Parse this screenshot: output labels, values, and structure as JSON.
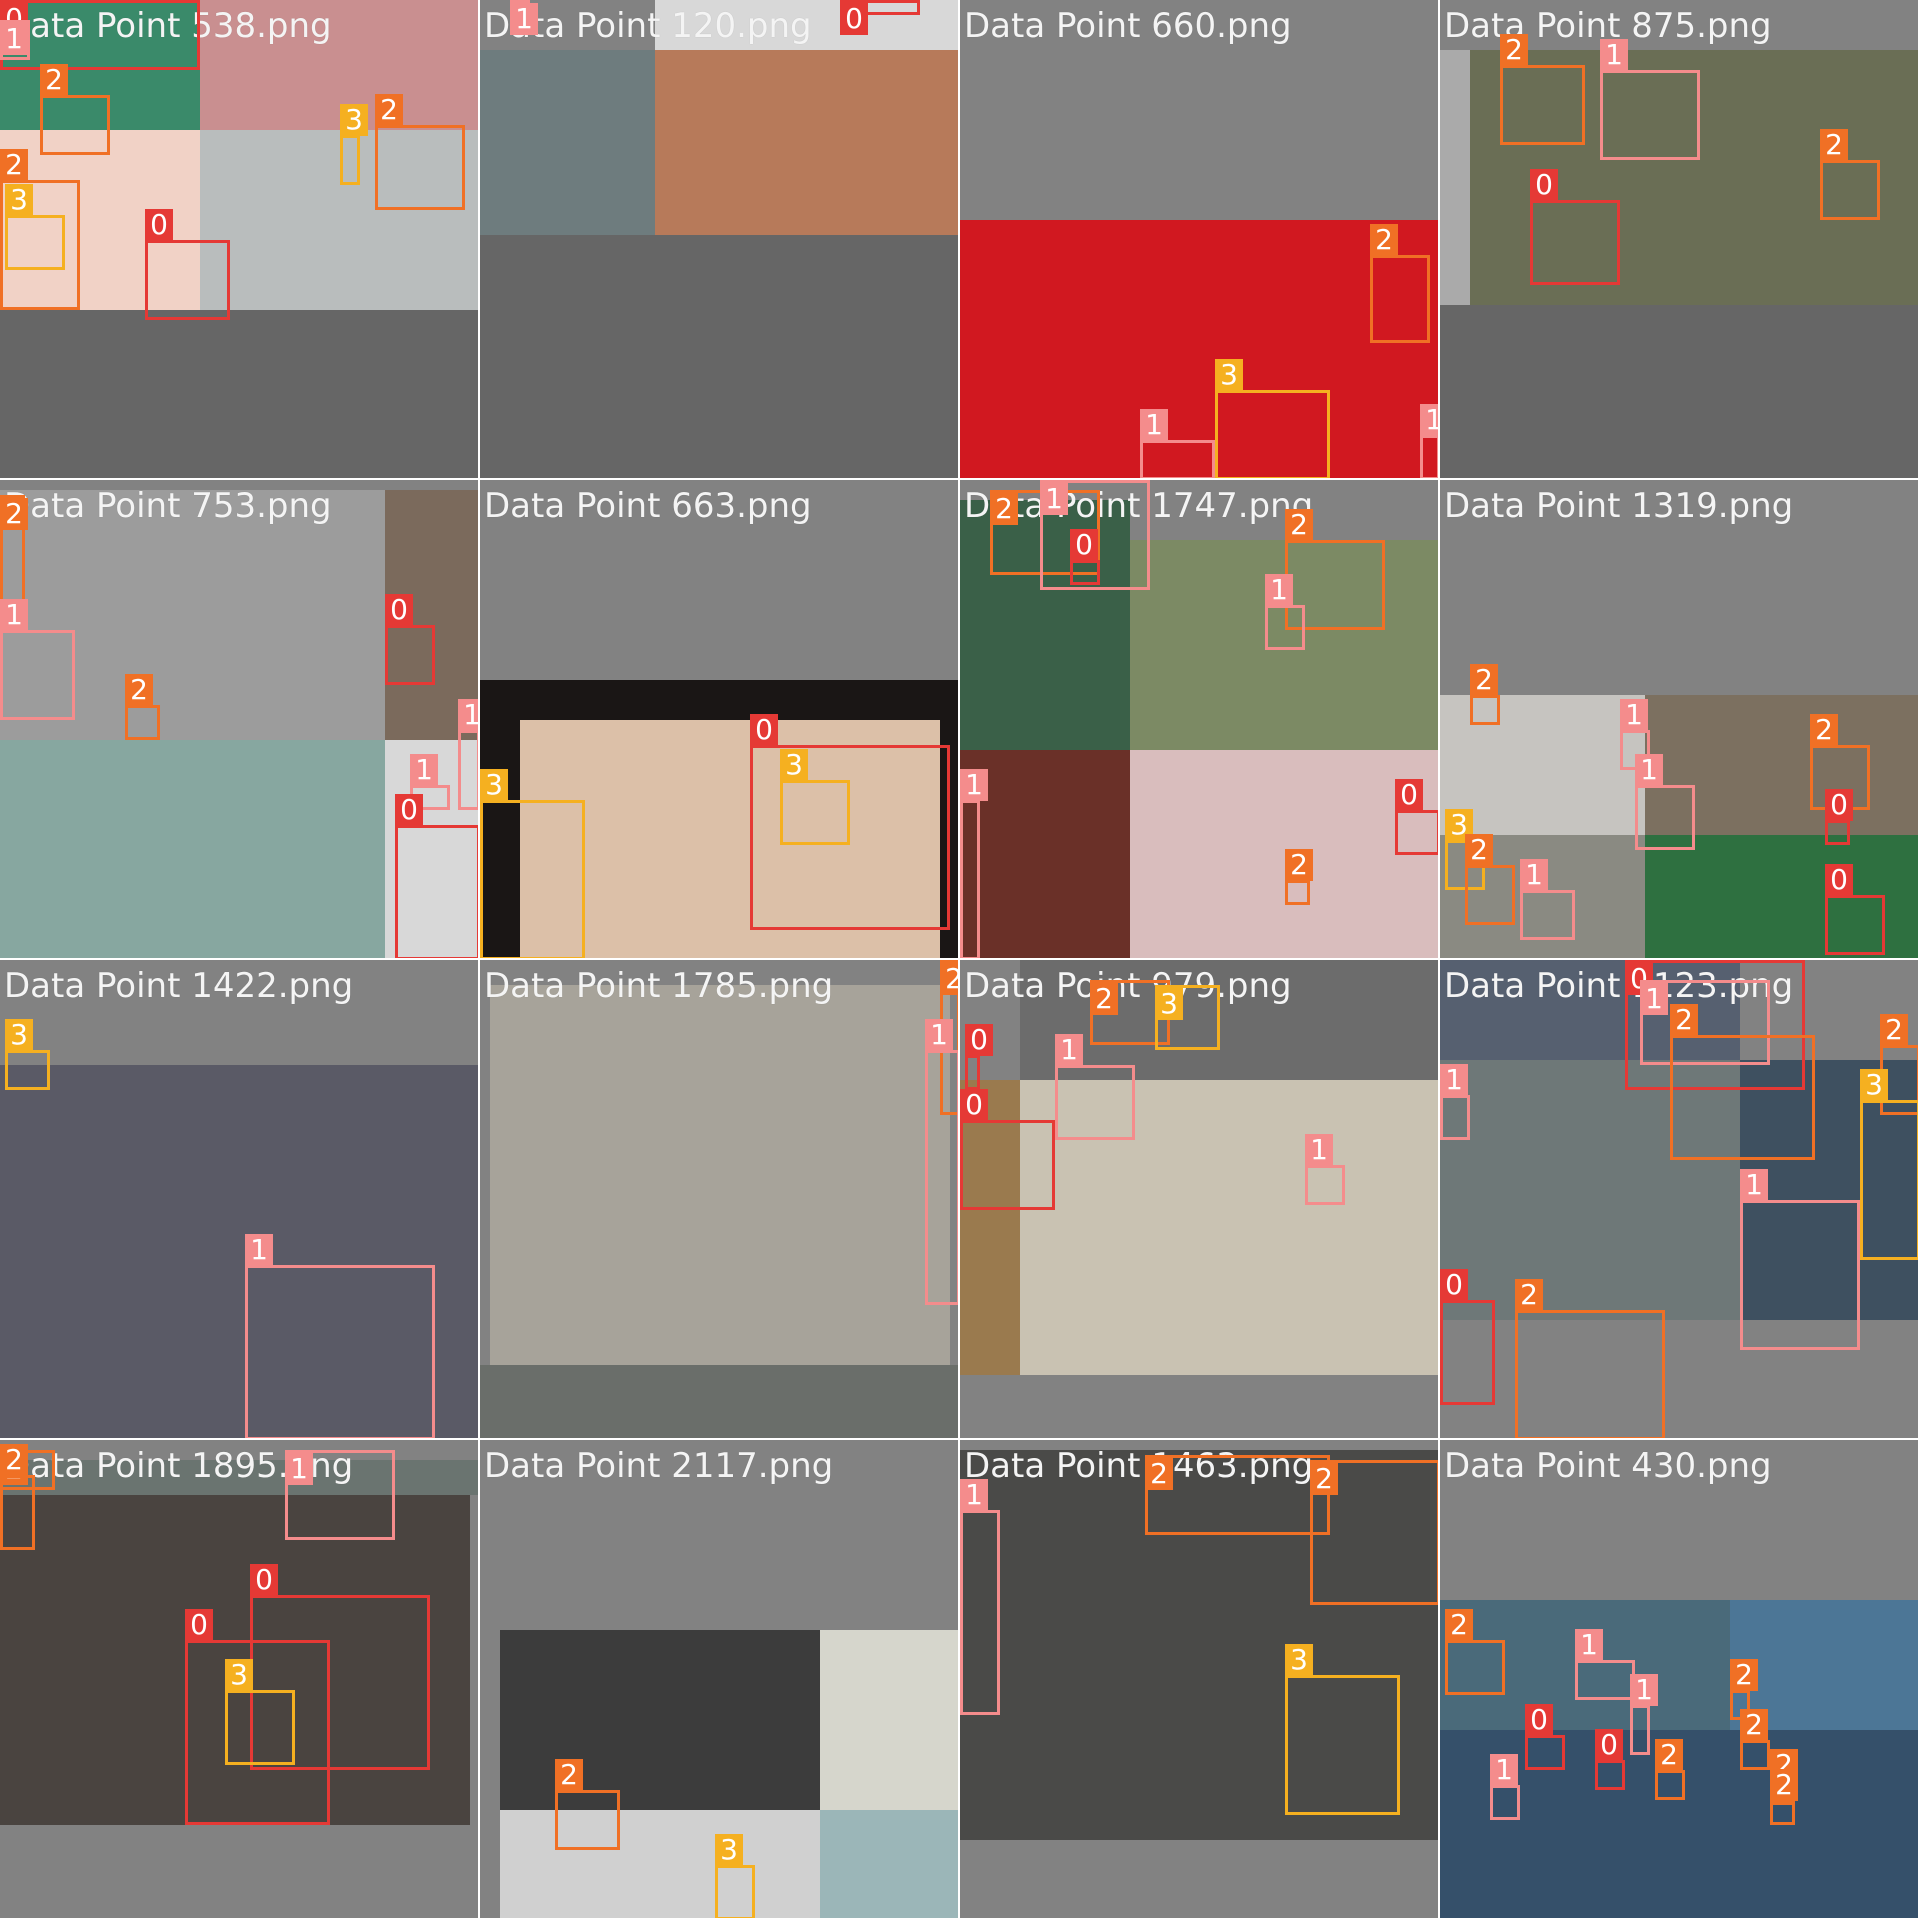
{
  "colors": {
    "class_0": "#e53935",
    "class_1": "#f48c8c",
    "class_2": "#f07025",
    "class_3": "#f5b020",
    "tile_gray": "#828282",
    "tile_dark": "#646464",
    "label_text": "#f4f4f4"
  },
  "tiles": [
    {
      "label": "Data Point 538.png"
    },
    {
      "label": "Data Point 120.png"
    },
    {
      "label": "Data Point 660.png"
    },
    {
      "label": "Data Point 875.png"
    },
    {
      "label": "Data Point 753.png"
    },
    {
      "label": "Data Point 663.png"
    },
    {
      "label": "Data Point 1747.png"
    },
    {
      "label": "Data Point 1319.png"
    },
    {
      "label": "Data Point 1422.png"
    },
    {
      "label": "Data Point 1785.png"
    },
    {
      "label": "Data Point 979.png"
    },
    {
      "label": "Data Point 1123.png"
    },
    {
      "label": "Data Point 1895.png"
    },
    {
      "label": "Data Point 2117.png"
    },
    {
      "label": "Data Point 1463.png"
    },
    {
      "label": "Data Point 430.png"
    }
  ]
}
